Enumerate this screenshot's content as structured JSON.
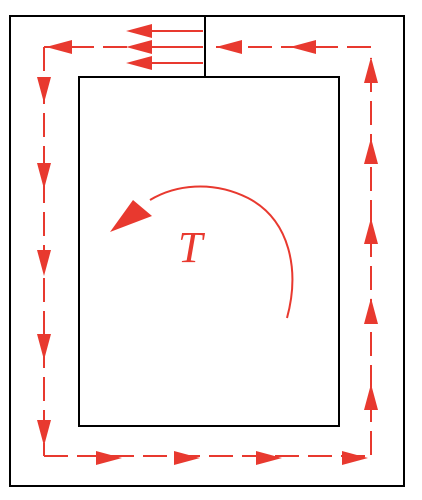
{
  "torque": {
    "label": "T"
  },
  "colors": {
    "outline": "#000000",
    "flow": "#e8392f",
    "background": "#ffffff"
  }
}
